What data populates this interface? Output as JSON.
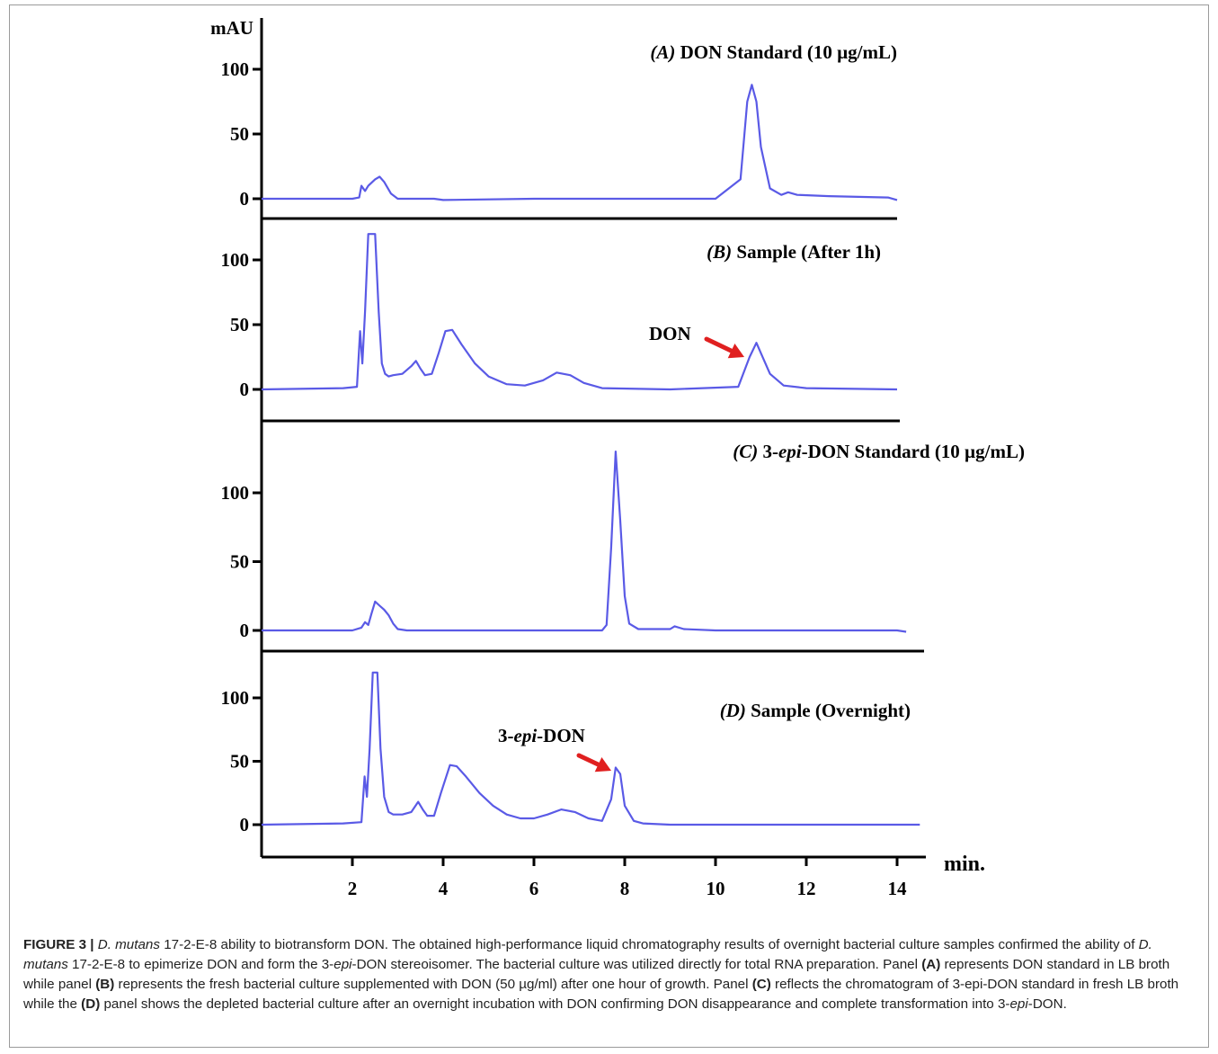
{
  "chart_data": {
    "type": "line",
    "y_unit": "mAU",
    "x_unit": "min.",
    "xlim": [
      0,
      14
    ],
    "x_ticks": [
      2,
      4,
      6,
      8,
      10,
      12,
      14
    ],
    "colors": {
      "trace": "#5a5ae6",
      "arrow": "#e02020",
      "axis": "#000000"
    },
    "panels": [
      {
        "id": "A",
        "label": "(A)",
        "title": "DON Standard (10 µg/mL)",
        "y_ticks": [
          0,
          50,
          100
        ],
        "ylim": [
          -15,
          120
        ],
        "x": [
          0,
          2.0,
          2.15,
          2.2,
          2.28,
          2.35,
          2.5,
          2.6,
          2.7,
          2.85,
          3.0,
          3.8,
          4.0,
          6.0,
          8.0,
          10.0,
          10.55,
          10.7,
          10.8,
          10.9,
          11.0,
          11.2,
          11.45,
          11.6,
          11.8,
          12.5,
          13.8,
          14.0
        ],
        "y": [
          0,
          0,
          1,
          10,
          6,
          10,
          15,
          17,
          13,
          4,
          0,
          0,
          -1,
          0,
          0,
          0,
          15,
          75,
          88,
          75,
          40,
          8,
          3,
          5,
          3,
          2,
          1,
          -1
        ]
      },
      {
        "id": "B",
        "label": "(B)",
        "title": "Sample (After 1h)",
        "y_ticks": [
          0,
          50,
          100
        ],
        "ylim": [
          -15,
          120
        ],
        "x": [
          0,
          1.8,
          2.1,
          2.17,
          2.22,
          2.28,
          2.35,
          2.42,
          2.5,
          2.58,
          2.65,
          2.72,
          2.8,
          2.9,
          3.1,
          3.3,
          3.4,
          3.5,
          3.6,
          3.75,
          3.9,
          4.05,
          4.2,
          4.4,
          4.7,
          5.0,
          5.4,
          5.8,
          6.2,
          6.5,
          6.8,
          7.1,
          7.5,
          9.0,
          10.5,
          10.75,
          10.9,
          11.0,
          11.2,
          11.5,
          12.0,
          14.0
        ],
        "y": [
          0,
          1,
          2,
          45,
          20,
          60,
          135,
          135,
          135,
          60,
          20,
          12,
          10,
          11,
          12,
          18,
          22,
          16,
          11,
          12,
          28,
          45,
          46,
          35,
          20,
          10,
          4,
          3,
          7,
          13,
          11,
          5,
          1,
          0,
          2,
          25,
          36,
          28,
          12,
          3,
          1,
          0
        ]
      },
      {
        "id": "C",
        "label": "(C)",
        "title": "3-epi-DON Standard (10 µg/mL)",
        "y_ticks": [
          0,
          50,
          100
        ],
        "ylim": [
          -15,
          140
        ],
        "x": [
          0,
          2.0,
          2.2,
          2.28,
          2.35,
          2.42,
          2.5,
          2.6,
          2.7,
          2.8,
          2.9,
          3.0,
          3.2,
          4.0,
          6.0,
          7.3,
          7.5,
          7.6,
          7.7,
          7.8,
          7.9,
          8.0,
          8.1,
          8.3,
          9.0,
          9.1,
          9.3,
          10.0,
          12.0,
          14.0,
          14.2
        ],
        "y": [
          0,
          0,
          2,
          6,
          4,
          12,
          21,
          18,
          15,
          11,
          5,
          1,
          0,
          0,
          0,
          0,
          0,
          4,
          60,
          130,
          80,
          25,
          5,
          1,
          1,
          3,
          1,
          0,
          0,
          0,
          -1
        ]
      },
      {
        "id": "D",
        "label": "(D)",
        "title": "Sample (Overnight)",
        "y_ticks": [
          0,
          50,
          100
        ],
        "ylim": [
          -15,
          120
        ],
        "x": [
          0,
          1.8,
          2.2,
          2.27,
          2.32,
          2.38,
          2.45,
          2.5,
          2.55,
          2.62,
          2.7,
          2.8,
          2.9,
          3.1,
          3.3,
          3.45,
          3.55,
          3.65,
          3.8,
          3.95,
          4.15,
          4.3,
          4.5,
          4.8,
          5.1,
          5.4,
          5.7,
          6.0,
          6.3,
          6.6,
          6.9,
          7.2,
          7.5,
          7.7,
          7.8,
          7.9,
          8.0,
          8.2,
          8.4,
          9.0,
          10.0,
          12.0,
          14.0,
          14.5
        ],
        "y": [
          0,
          1,
          2,
          38,
          22,
          60,
          135,
          135,
          135,
          60,
          22,
          10,
          8,
          8,
          10,
          18,
          12,
          7,
          7,
          25,
          47,
          46,
          38,
          25,
          15,
          8,
          5,
          5,
          8,
          12,
          10,
          5,
          3,
          20,
          45,
          40,
          15,
          3,
          1,
          0,
          0,
          0,
          0,
          0
        ]
      }
    ],
    "annotations": [
      {
        "panel": "B",
        "text": "DON",
        "x": 10.85,
        "y": 36
      },
      {
        "panel": "D",
        "text": "3-epi-DON",
        "x": 7.85,
        "y": 47
      }
    ]
  },
  "caption": {
    "figure_label": "FIGURE 3 |",
    "parts": [
      {
        "style": "i",
        "text": "D. mutans"
      },
      {
        "style": "n",
        "text": " 17-2-E-8 ability to biotransform DON. The obtained high-performance liquid chromatography results of overnight bacterial culture samples confirmed the ability of "
      },
      {
        "style": "i",
        "text": "D. mutans"
      },
      {
        "style": "n",
        "text": " 17-2-E-8 to epimerize DON and form the 3-"
      },
      {
        "style": "i",
        "text": "epi"
      },
      {
        "style": "n",
        "text": "-DON stereoisomer. The bacterial culture was utilized directly for total RNA preparation. Panel "
      },
      {
        "style": "b",
        "text": "(A)"
      },
      {
        "style": "n",
        "text": " represents DON standard in LB broth while panel "
      },
      {
        "style": "b",
        "text": "(B)"
      },
      {
        "style": "n",
        "text": " represents the fresh bacterial culture supplemented with DON (50 µg/ml) after one hour of growth. Panel "
      },
      {
        "style": "b",
        "text": "(C)"
      },
      {
        "style": "n",
        "text": " reflects the chromatogram of 3-epi-DON standard in fresh LB broth while the "
      },
      {
        "style": "b",
        "text": "(D)"
      },
      {
        "style": "n",
        "text": " panel shows the depleted bacterial culture after an overnight incubation with DON confirming DON disappearance and complete transformation into 3-"
      },
      {
        "style": "i",
        "text": "epi"
      },
      {
        "style": "n",
        "text": "-DON."
      }
    ]
  }
}
